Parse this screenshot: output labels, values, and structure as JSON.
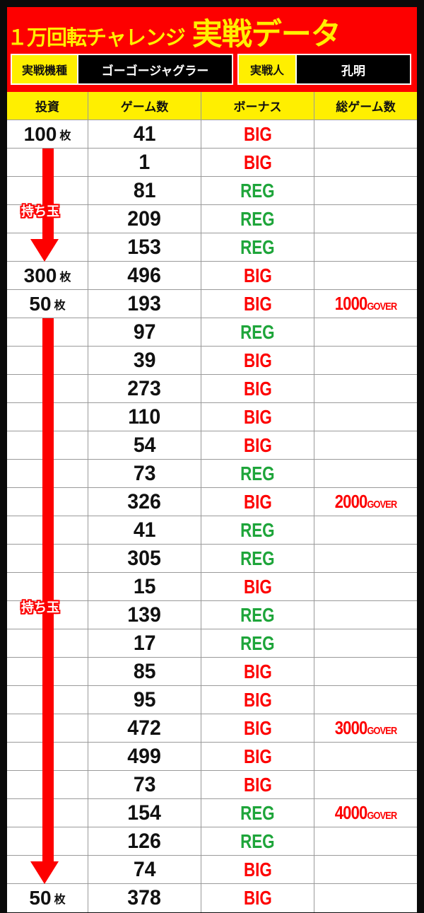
{
  "header": {
    "title_small": "１万回転チャレンジ",
    "title_large": "実戦データ",
    "machine_label": "実戦機種",
    "machine_value": "ゴーゴージャグラー",
    "player_label": "実戦人",
    "player_value": "孔明"
  },
  "columns": [
    "投資",
    "ゲーム数",
    "ボーナス",
    "総ゲーム数"
  ],
  "unit": "枚",
  "arrow_label": "持ち玉",
  "colors": {
    "red": "#fd0000",
    "yellow": "#ffef00",
    "green": "#1ea53a"
  },
  "rows": [
    {
      "invest": "100",
      "games": "41",
      "bonus": "BIG"
    },
    {
      "games": "1",
      "bonus": "BIG"
    },
    {
      "games": "81",
      "bonus": "REG"
    },
    {
      "games": "209",
      "bonus": "REG"
    },
    {
      "games": "153",
      "bonus": "REG"
    },
    {
      "invest": "300",
      "games": "496",
      "bonus": "BIG"
    },
    {
      "invest": "50",
      "games": "193",
      "bonus": "BIG",
      "total": "1000",
      "total_suffix": "GOVER"
    },
    {
      "games": "97",
      "bonus": "REG"
    },
    {
      "games": "39",
      "bonus": "BIG"
    },
    {
      "games": "273",
      "bonus": "BIG"
    },
    {
      "games": "110",
      "bonus": "BIG"
    },
    {
      "games": "54",
      "bonus": "BIG"
    },
    {
      "games": "73",
      "bonus": "REG"
    },
    {
      "games": "326",
      "bonus": "BIG",
      "total": "2000",
      "total_suffix": "GOVER"
    },
    {
      "games": "41",
      "bonus": "REG"
    },
    {
      "games": "305",
      "bonus": "REG"
    },
    {
      "games": "15",
      "bonus": "BIG"
    },
    {
      "games": "139",
      "bonus": "REG"
    },
    {
      "games": "17",
      "bonus": "REG"
    },
    {
      "games": "85",
      "bonus": "BIG"
    },
    {
      "games": "95",
      "bonus": "BIG"
    },
    {
      "games": "472",
      "bonus": "BIG",
      "total": "3000",
      "total_suffix": "GOVER"
    },
    {
      "games": "499",
      "bonus": "BIG"
    },
    {
      "games": "73",
      "bonus": "BIG"
    },
    {
      "games": "154",
      "bonus": "REG",
      "total": "4000",
      "total_suffix": "GOVER"
    },
    {
      "games": "126",
      "bonus": "REG"
    },
    {
      "games": "74",
      "bonus": "BIG"
    },
    {
      "invest": "50",
      "games": "378",
      "bonus": "BIG"
    }
  ]
}
